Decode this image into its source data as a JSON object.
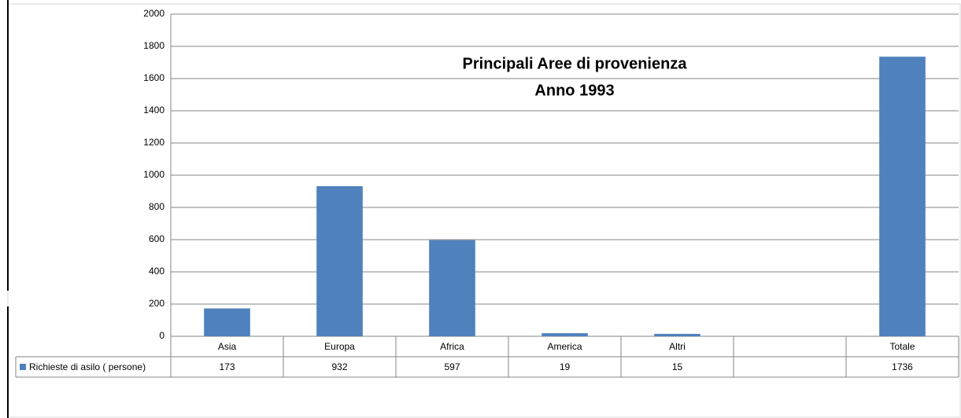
{
  "chart_data": {
    "type": "bar",
    "title": "Principali Aree di provenienza",
    "subtitle": "Anno 1993",
    "categories": [
      "Asia",
      "Europa",
      "Africa",
      "America",
      "Altri",
      null,
      "Totale"
    ],
    "series": [
      {
        "name": "Richieste di asilo ( persone)",
        "color": "#4f81bd",
        "values": [
          173,
          932,
          597,
          19,
          15,
          null,
          1736
        ]
      }
    ],
    "ylim": [
      0,
      2000
    ],
    "yticks": [
      0,
      200,
      400,
      600,
      800,
      1000,
      1200,
      1400,
      1600,
      1800,
      2000
    ],
    "grid": true
  }
}
